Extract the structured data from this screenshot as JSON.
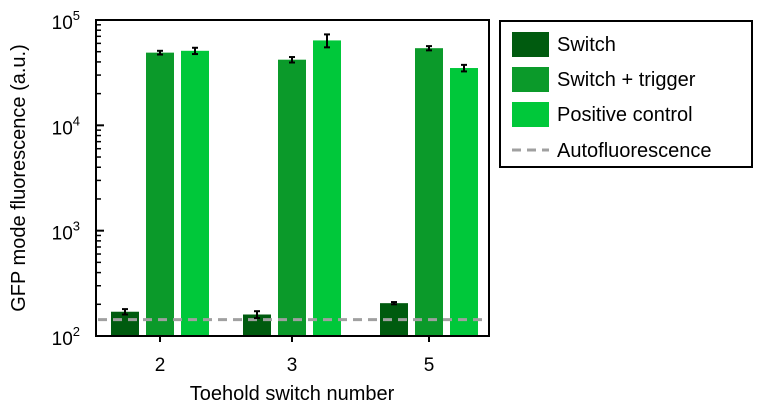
{
  "chart_data": {
    "type": "bar",
    "title": "",
    "xlabel": "Toehold switch number",
    "ylabel": "GFP mode fluorescence (a.u.)",
    "yscale": "log",
    "ylim": [
      100,
      100000
    ],
    "yticks": [
      {
        "base": "10",
        "exp": "2",
        "value": 100
      },
      {
        "base": "10",
        "exp": "3",
        "value": 1000
      },
      {
        "base": "10",
        "exp": "4",
        "value": 10000
      },
      {
        "base": "10",
        "exp": "5",
        "value": 100000
      }
    ],
    "categories": [
      "2",
      "3",
      "5"
    ],
    "series": [
      {
        "name": "Switch",
        "color": "#005b0f",
        "values": [
          170,
          160,
          205
        ],
        "errors": [
          10,
          12,
          5
        ]
      },
      {
        "name": "Switch + trigger",
        "color": "#0b9a2a",
        "values": [
          49000,
          42000,
          54000
        ],
        "errors": [
          2000,
          2500,
          2500
        ]
      },
      {
        "name": "Positive control",
        "color": "#00c83a",
        "values": [
          51000,
          64000,
          35000
        ],
        "errors": [
          3500,
          9000,
          2500
        ]
      }
    ],
    "reference_lines": [
      {
        "name": "Autofluorescence",
        "value": 143,
        "color": "#a0a0a0",
        "style": "dashed"
      }
    ],
    "legend": "outside-top-right",
    "grid": false
  }
}
